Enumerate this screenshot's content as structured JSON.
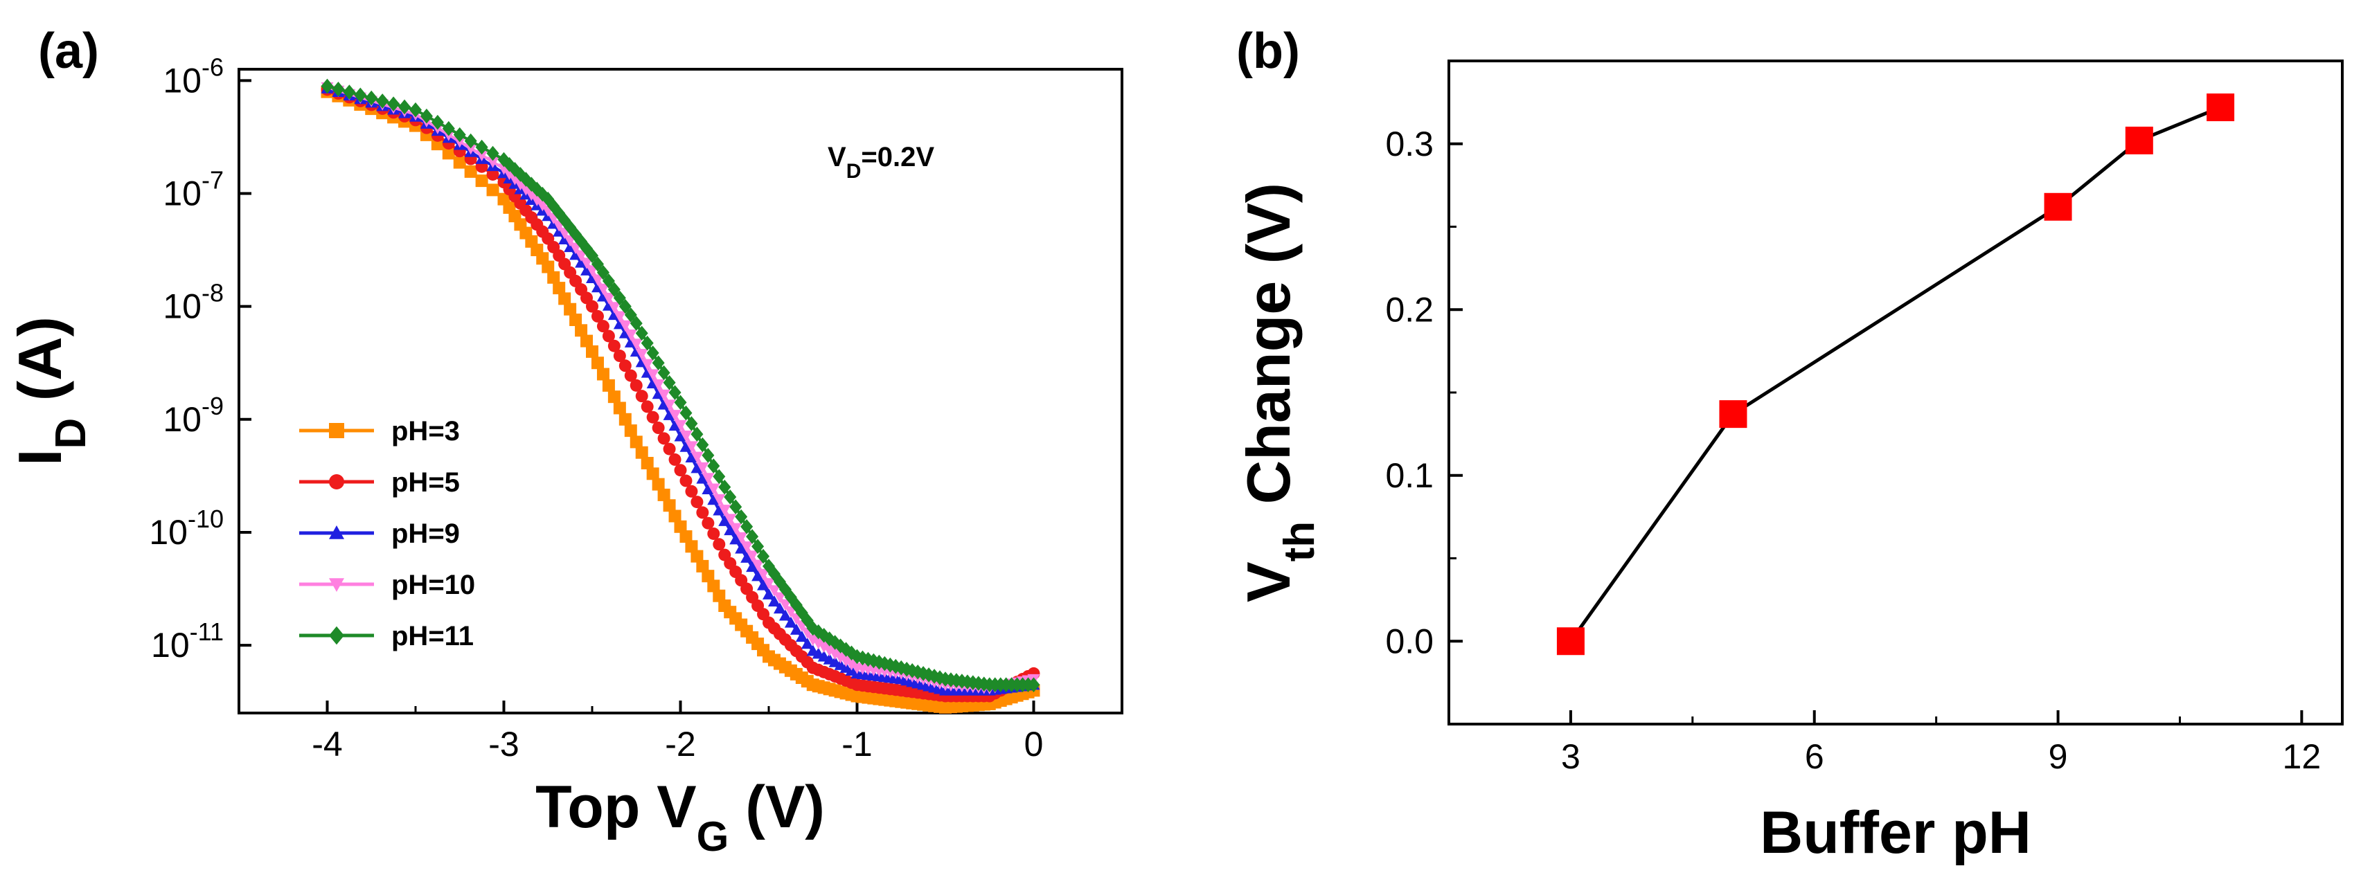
{
  "chart_data": [
    {
      "panel": "(a)",
      "type": "line",
      "y_scale": "log",
      "xlabel_main": "Top V",
      "xlabel_sub": "G",
      "xlabel_unit": " (V)",
      "ylabel_main": "I",
      "ylabel_sub": "D",
      "ylabel_unit": " (A)",
      "xlim": [
        -4.5,
        0.5
      ],
      "ylim_exp": [
        -11.6,
        -5.9
      ],
      "xticks": [
        -4,
        -3,
        -2,
        -1,
        0
      ],
      "xtick_labels": [
        "-4",
        "-3",
        "-2",
        "-1",
        "0"
      ],
      "yticks_exp": [
        -6,
        -7,
        -8,
        -9,
        -10,
        -11
      ],
      "ytick_base": "10",
      "ytick_exponents": [
        "-6",
        "-7",
        "-8",
        "-9",
        "-10",
        "-11"
      ],
      "annotation_main": "V",
      "annotation_sub": "D",
      "annotation_rest": "=0.2V",
      "series": [
        {
          "name": "pH=3",
          "color": "#ff8c00",
          "marker": "square",
          "x": [
            -4.0,
            -3.5,
            -3.0,
            -2.75,
            -2.5,
            -2.25,
            -2.0,
            -1.75,
            -1.5,
            -1.25,
            -1.0,
            -0.75,
            -0.5,
            -0.25,
            0.0
          ],
          "logy": [
            -6.1,
            -6.4,
            -7.05,
            -7.65,
            -8.4,
            -9.2,
            -9.95,
            -10.65,
            -11.1,
            -11.35,
            -11.45,
            -11.5,
            -11.55,
            -11.52,
            -11.4
          ]
        },
        {
          "name": "pH=5",
          "color": "#ee1c1c",
          "marker": "circle",
          "x": [
            -4.0,
            -3.5,
            -3.0,
            -2.75,
            -2.5,
            -2.25,
            -2.0,
            -1.75,
            -1.5,
            -1.25,
            -1.0,
            -0.75,
            -0.5,
            -0.25,
            0.0
          ],
          "logy": [
            -6.08,
            -6.35,
            -6.9,
            -7.4,
            -8.0,
            -8.7,
            -9.45,
            -10.2,
            -10.8,
            -11.2,
            -11.35,
            -11.4,
            -11.45,
            -11.45,
            -11.25
          ]
        },
        {
          "name": "pH=9",
          "color": "#2020e0",
          "marker": "triangle-up",
          "x": [
            -4.0,
            -3.5,
            -3.0,
            -2.75,
            -2.5,
            -2.25,
            -2.0,
            -1.75,
            -1.5,
            -1.25,
            -1.0,
            -0.75,
            -0.5,
            -0.25,
            0.0
          ],
          "logy": [
            -6.07,
            -6.32,
            -6.82,
            -7.2,
            -7.75,
            -8.4,
            -9.15,
            -9.9,
            -10.55,
            -11.05,
            -11.25,
            -11.3,
            -11.4,
            -11.4,
            -11.35
          ]
        },
        {
          "name": "pH=10",
          "color": "#ff80e0",
          "marker": "triangle-down",
          "x": [
            -4.0,
            -3.5,
            -3.0,
            -2.75,
            -2.5,
            -2.25,
            -2.0,
            -1.75,
            -1.5,
            -1.25,
            -1.0,
            -0.75,
            -0.5,
            -0.25,
            0.0
          ],
          "logy": [
            -6.06,
            -6.3,
            -6.78,
            -7.15,
            -7.68,
            -8.33,
            -9.05,
            -9.8,
            -10.45,
            -10.95,
            -11.2,
            -11.25,
            -11.35,
            -11.38,
            -11.3
          ]
        },
        {
          "name": "pH=11",
          "color": "#1e8a28",
          "marker": "diamond",
          "x": [
            -4.0,
            -3.5,
            -3.0,
            -2.75,
            -2.5,
            -2.25,
            -2.0,
            -1.75,
            -1.5,
            -1.25,
            -1.0,
            -0.75,
            -0.5,
            -0.25,
            0.0
          ],
          "logy": [
            -6.05,
            -6.26,
            -6.7,
            -7.05,
            -7.55,
            -8.15,
            -8.85,
            -9.6,
            -10.3,
            -10.85,
            -11.1,
            -11.2,
            -11.3,
            -11.35,
            -11.35
          ]
        }
      ]
    },
    {
      "panel": "(b)",
      "type": "line",
      "xlabel": "Buffer pH",
      "ylabel_main": "V",
      "ylabel_sub": "th",
      "ylabel_rest": " Change (V)",
      "xlim": [
        1.5,
        12.5
      ],
      "ylim": [
        -0.05,
        0.35
      ],
      "xticks": [
        3,
        6,
        9,
        12
      ],
      "xtick_labels": [
        "3",
        "6",
        "9",
        "12"
      ],
      "yticks": [
        0.0,
        0.1,
        0.2,
        0.3
      ],
      "ytick_labels": [
        "0.0",
        "0.1",
        "0.2",
        "0.3"
      ],
      "series": [
        {
          "name": "Vth change",
          "color": "#ff0000",
          "marker": "square",
          "x": [
            3,
            5,
            9,
            10,
            11
          ],
          "y": [
            0.0,
            0.137,
            0.262,
            0.302,
            0.322
          ]
        }
      ]
    }
  ]
}
